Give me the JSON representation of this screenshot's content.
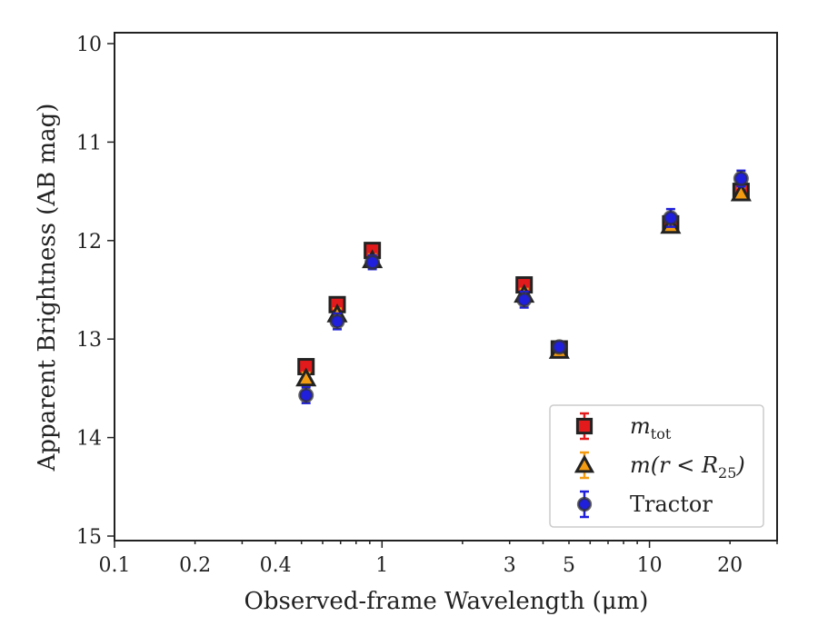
{
  "chart_data": {
    "type": "scatter",
    "title": "",
    "xlabel": "Observed-frame Wavelength (μm)",
    "ylabel": "Apparent Brightness (AB mag)",
    "xscale": "log",
    "xlim": [
      0.1,
      30
    ],
    "ylim": [
      15,
      10
    ],
    "y_inverted": true,
    "x_ticks": [
      0.1,
      0.2,
      0.4,
      1,
      3,
      5,
      10,
      20
    ],
    "x_tick_labels": [
      "0.1",
      "0.2",
      "0.4",
      "1",
      "3",
      "5",
      "10",
      "20"
    ],
    "y_ticks": [
      10,
      11,
      12,
      13,
      14,
      15
    ],
    "y_tick_labels": [
      "10",
      "11",
      "12",
      "13",
      "14",
      "15"
    ],
    "grid": false,
    "legend_position": "lower-right",
    "series": [
      {
        "name": "m_tot",
        "marker": "square",
        "color": "#e31a1c",
        "edge_color": "#222222",
        "points": [
          {
            "x": 0.52,
            "y": 13.28,
            "err": 0.07
          },
          {
            "x": 0.68,
            "y": 12.65,
            "err": 0.07
          },
          {
            "x": 0.92,
            "y": 12.1,
            "err": 0.07
          },
          {
            "x": 3.4,
            "y": 12.45,
            "err": 0.07
          },
          {
            "x": 4.6,
            "y": 13.1,
            "err": 0.07
          },
          {
            "x": 12.0,
            "y": 11.83,
            "err": 0.07
          },
          {
            "x": 22.0,
            "y": 11.5,
            "err": 0.08
          }
        ]
      },
      {
        "name": "m(r < R25)",
        "marker": "triangle",
        "color": "#f39c12",
        "edge_color": "#222222",
        "points": [
          {
            "x": 0.52,
            "y": 13.4,
            "err": 0.06
          },
          {
            "x": 0.68,
            "y": 12.75,
            "err": 0.06
          },
          {
            "x": 0.92,
            "y": 12.2,
            "err": 0.06
          },
          {
            "x": 3.4,
            "y": 12.55,
            "err": 0.06
          },
          {
            "x": 4.6,
            "y": 13.12,
            "err": 0.06
          },
          {
            "x": 12.0,
            "y": 11.85,
            "err": 0.06
          },
          {
            "x": 22.0,
            "y": 11.52,
            "err": 0.06
          }
        ]
      },
      {
        "name": "Tractor",
        "marker": "circle",
        "color": "#1f1fdc",
        "edge_color": "#333333",
        "points": [
          {
            "x": 0.52,
            "y": 13.57,
            "err": 0.08
          },
          {
            "x": 0.68,
            "y": 12.82,
            "err": 0.08
          },
          {
            "x": 0.92,
            "y": 12.22,
            "err": 0.07
          },
          {
            "x": 3.4,
            "y": 12.6,
            "err": 0.08
          },
          {
            "x": 4.6,
            "y": 13.08,
            "err": 0.05
          },
          {
            "x": 12.0,
            "y": 11.77,
            "err": 0.09
          },
          {
            "x": 22.0,
            "y": 11.37,
            "err": 0.08
          }
        ]
      }
    ],
    "legend": [
      {
        "series": 0,
        "main": "m",
        "sub": "tot",
        "suffix": ""
      },
      {
        "series": 1,
        "main": "m(r < R",
        "sub": "25",
        "suffix": ")"
      },
      {
        "series": 2,
        "main": "Tractor",
        "sub": "",
        "suffix": ""
      }
    ]
  }
}
